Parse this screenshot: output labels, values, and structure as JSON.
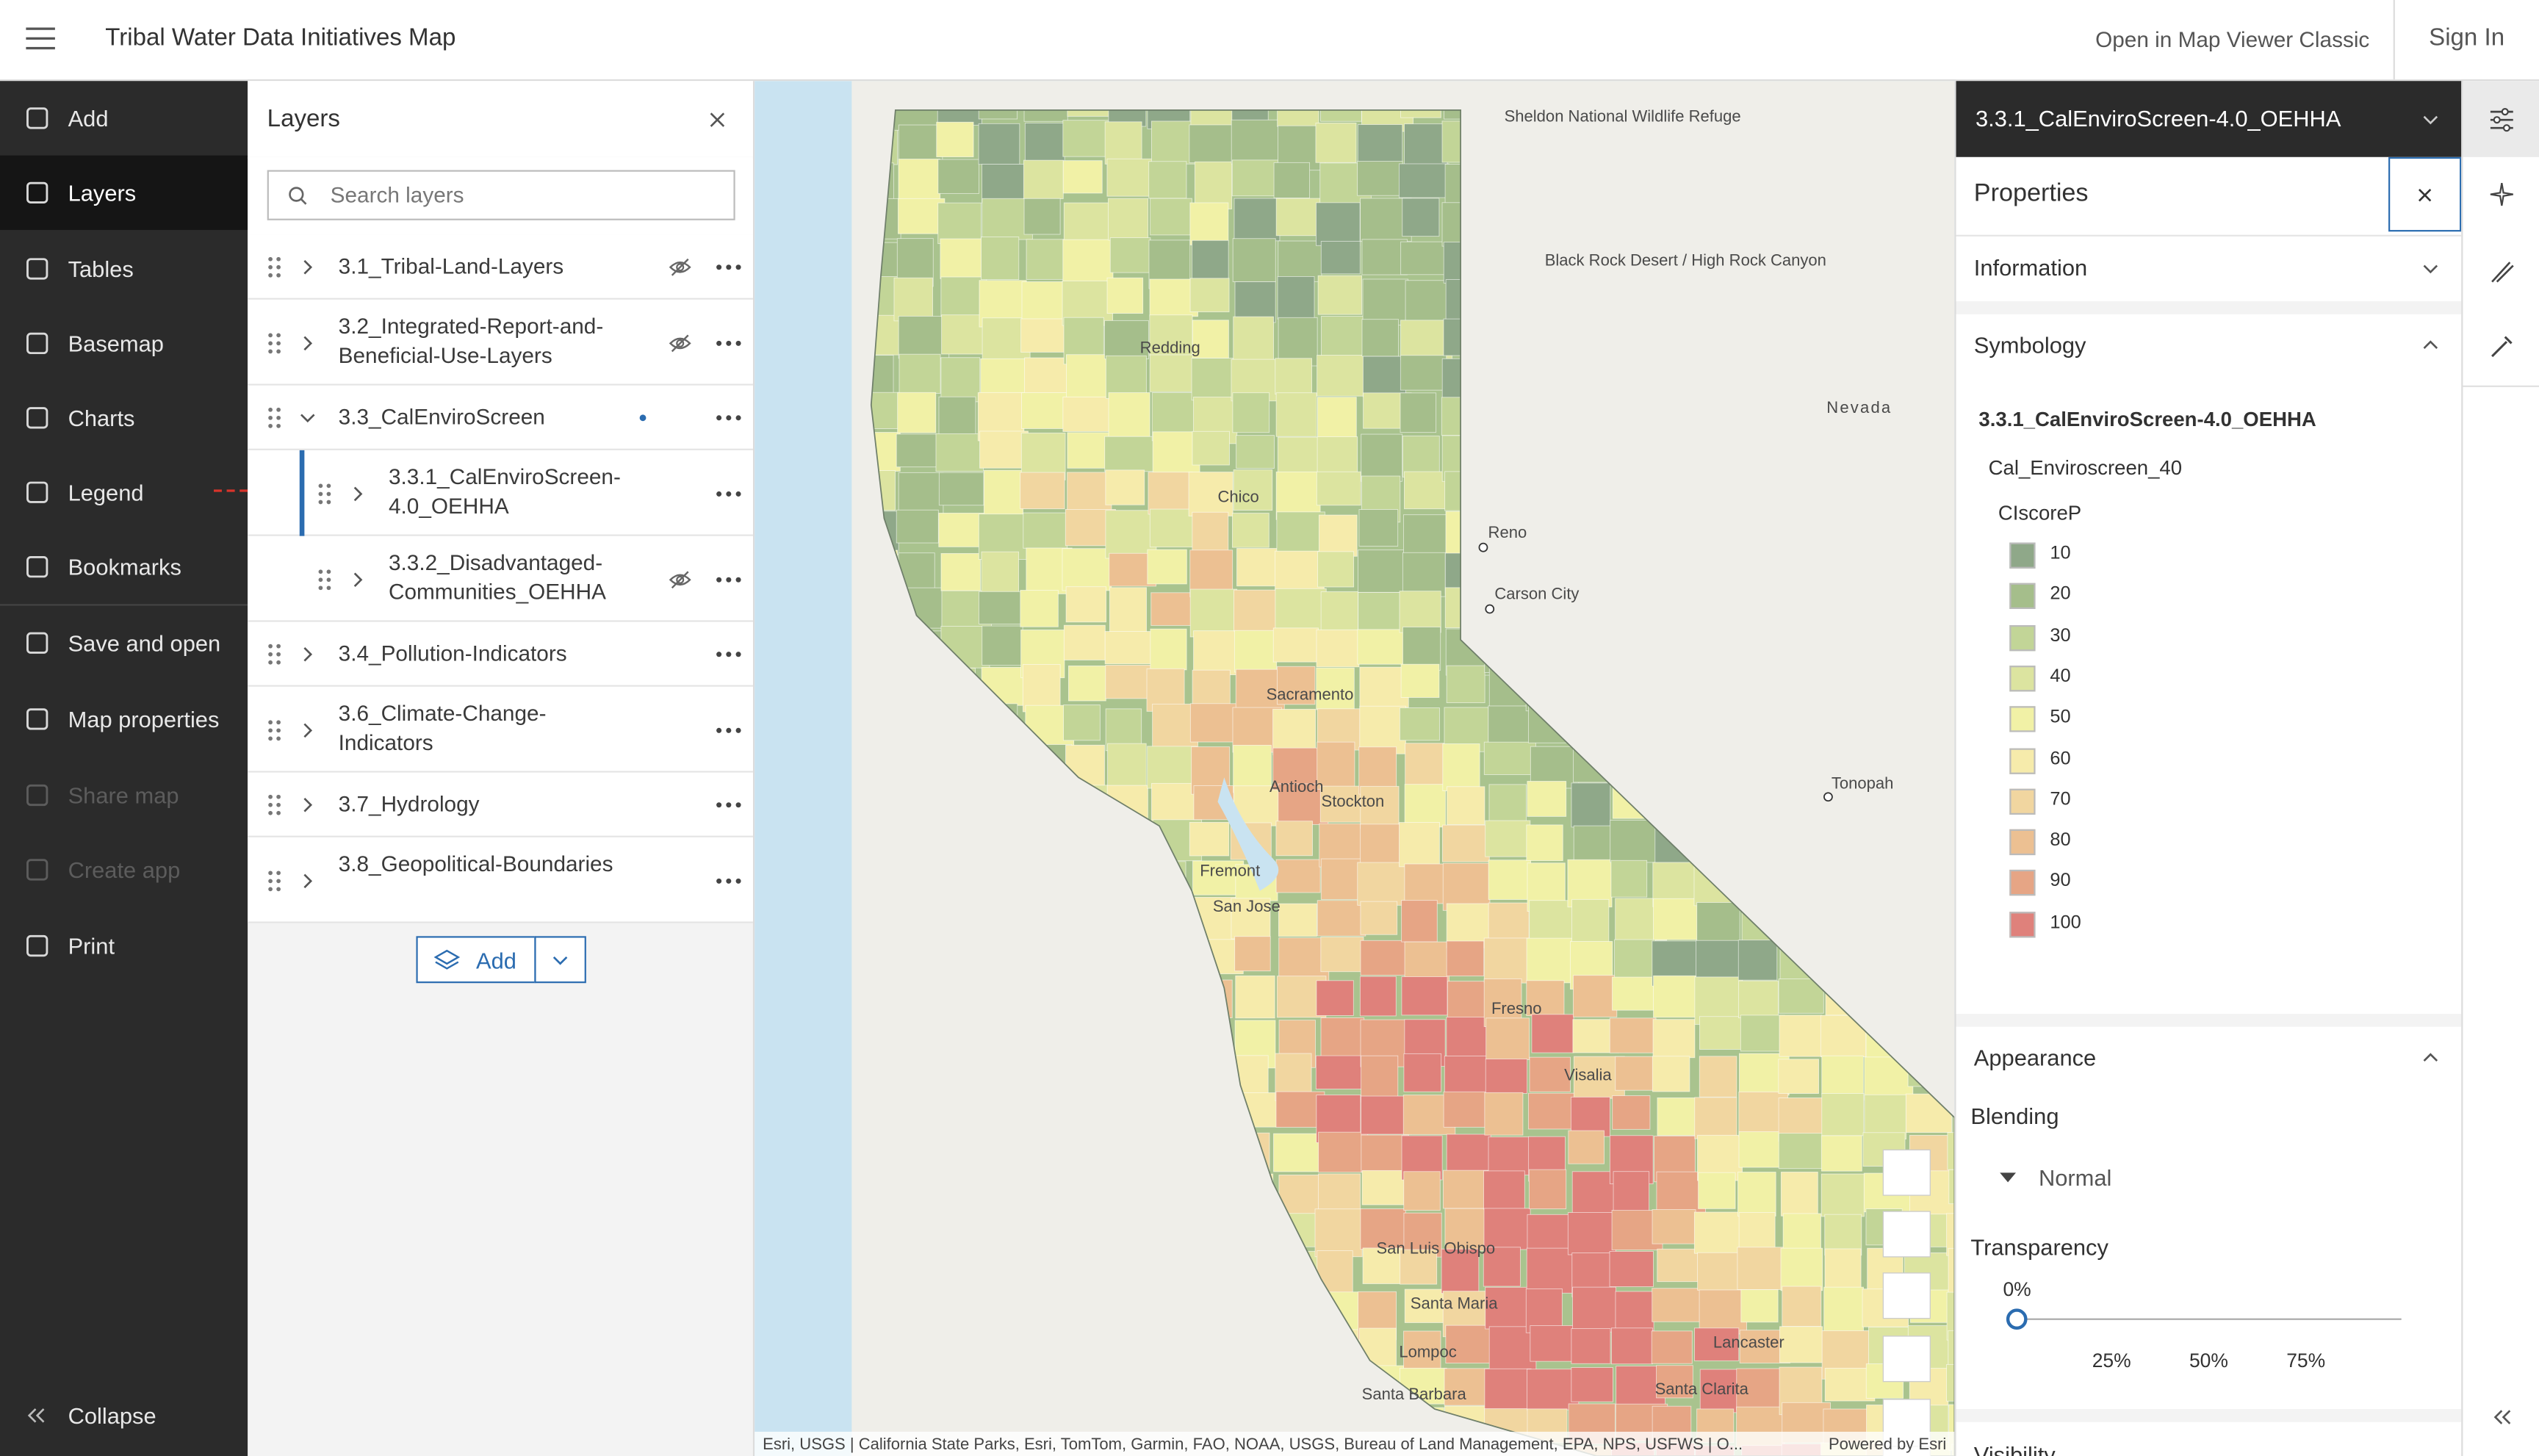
{
  "header": {
    "title": "Tribal Water Data Initiatives Map",
    "classic": "Open in Map Viewer Classic",
    "sign_in": "Sign In"
  },
  "nav": {
    "items": [
      "Add",
      "Layers",
      "Tables",
      "Basemap",
      "Charts",
      "Legend",
      "Bookmarks",
      "Save and open",
      "Map properties",
      "Share map",
      "Create app",
      "Print"
    ],
    "collapse": "Collapse"
  },
  "layers": {
    "title": "Layers",
    "search_placeholder": "Search layers",
    "items": [
      {
        "label": "3.1_Tribal-Land-Layers"
      },
      {
        "label": "3.2_Integrated-Report-and-Beneficial-Use-Layers"
      },
      {
        "label": "3.3_CalEnviroScreen"
      },
      {
        "label": "3.3.1_CalEnviroScreen-4.0_OEHHA"
      },
      {
        "label": "3.3.2_Disadvantaged-Communities_OEHHA"
      },
      {
        "label": "3.4_Pollution-Indicators"
      },
      {
        "label": "3.6_Climate-Change-Indicators"
      },
      {
        "label": "3.7_Hydrology"
      },
      {
        "label": "3.8_Geopolitical-Boundaries"
      }
    ],
    "add": "Add"
  },
  "map": {
    "labels": [
      "Sheldon National Wildlife Refuge",
      "Black Rock Desert / High Rock Canyon",
      "Nevada",
      "Redding",
      "Chico",
      "Reno",
      "Carson City",
      "Sacramento",
      "Stockton",
      "Antioch",
      "Fremont",
      "San Jose",
      "Tonopah",
      "Fresno",
      "Visalia",
      "San Luis Obispo",
      "Santa Maria",
      "Lompoc",
      "Santa Barbara",
      "Lancaster",
      "Santa Clarita"
    ],
    "attribution": "Esri, USGS | California State Parks, Esri, TomTom, Garmin, FAO, NOAA, USGS, Bureau of Land Management, EPA, NPS, USFWS | O...",
    "powered": "Powered by Esri"
  },
  "properties": {
    "layer_name": "3.3.1_CalEnviroScreen-4.0_OEHHA",
    "title": "Properties",
    "information": "Information",
    "symbology": {
      "title": "Symbology",
      "layer": "3.3.1_CalEnviroScreen-4.0_OEHHA",
      "sublayer": "Cal_Enviroscreen_40",
      "field": "CIscoreP",
      "legend": [
        {
          "label": "10",
          "color": "#8fa889"
        },
        {
          "label": "20",
          "color": "#a5be8b"
        },
        {
          "label": "30",
          "color": "#c2d597"
        },
        {
          "label": "40",
          "color": "#dce4a0"
        },
        {
          "label": "50",
          "color": "#f1f1a6"
        },
        {
          "label": "60",
          "color": "#f6ebab"
        },
        {
          "label": "70",
          "color": "#f1d6a0"
        },
        {
          "label": "80",
          "color": "#ecc092"
        },
        {
          "label": "90",
          "color": "#e6a585"
        },
        {
          "label": "100",
          "color": "#df817b"
        }
      ]
    },
    "appearance": {
      "title": "Appearance",
      "blending": "Blending",
      "blend_mode": "Normal",
      "transparency": "Transparency",
      "current": "0%",
      "ticks": [
        "25%",
        "50%",
        "75%"
      ]
    },
    "visibility": "Visibility"
  }
}
